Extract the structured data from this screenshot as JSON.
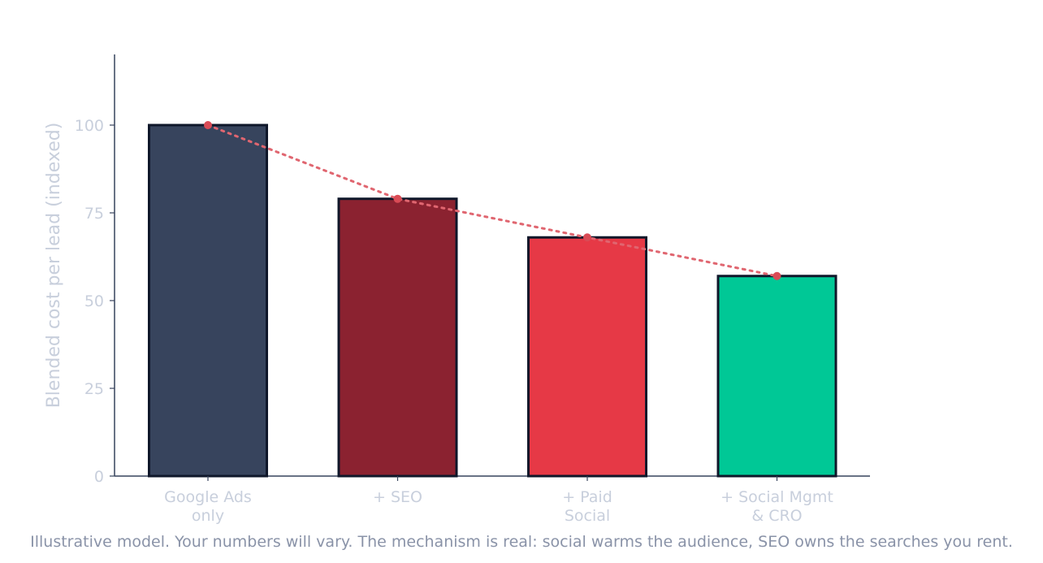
{
  "chart_data": {
    "type": "bar",
    "categories": [
      [
        "Google Ads",
        "only"
      ],
      [
        "+ SEO"
      ],
      [
        "+ Paid",
        "Social"
      ],
      [
        "+ Social Mgmt",
        "& CRO"
      ]
    ],
    "values": [
      100,
      79,
      68,
      57
    ],
    "bar_colors": [
      "#37445d",
      "#8b2230",
      "#e63946",
      "#00c896"
    ],
    "bar_edge_color": "#0f172a",
    "trend_line": {
      "style": "dotted",
      "color": "#e06670",
      "marker_color": "#d94b55",
      "values": [
        100,
        79,
        68,
        57
      ]
    },
    "xlabel": "",
    "ylabel": "Blended cost per lead (indexed)",
    "yticks": [
      0,
      25,
      50,
      75,
      100
    ],
    "ylim": [
      0,
      120
    ],
    "grid": false
  },
  "footnote": "Illustrative model. Your numbers will vary. The mechanism is real: social warms the audience, SEO owns the searches you rent."
}
